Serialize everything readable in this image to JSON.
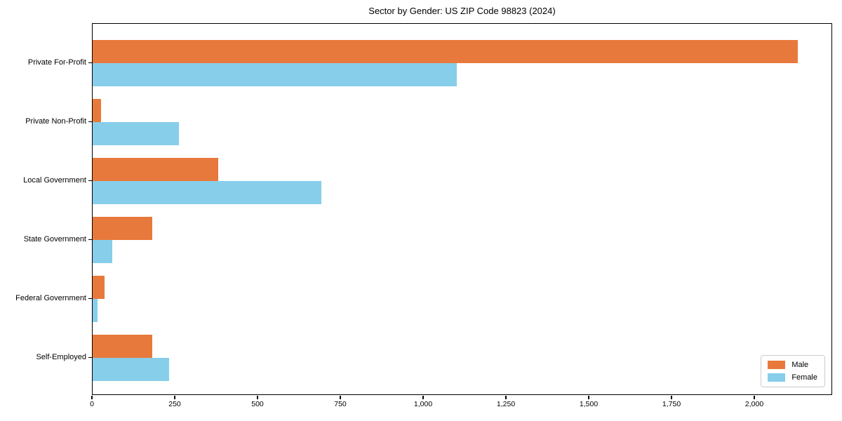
{
  "figure": {
    "background": "#ffffff",
    "text_color": "#000000",
    "spine_color": "#000000"
  },
  "chart_data": {
    "type": "bar",
    "orientation": "horizontal",
    "title": "Sector by Gender: US ZIP Code 98823 (2024)",
    "xlabel": "",
    "ylabel": "",
    "grid": false,
    "categories": [
      "Private For-Profit",
      "Private Non-Profit",
      "Local Government",
      "State Government",
      "Federal Government",
      "Self-Employed"
    ],
    "series": [
      {
        "name": "Male",
        "color": "#E8793C",
        "values": [
          2130,
          25,
          380,
          180,
          35,
          180
        ]
      },
      {
        "name": "Female",
        "color": "#87CEEB",
        "values": [
          1100,
          260,
          690,
          60,
          15,
          230
        ]
      }
    ],
    "xlim": [
      0,
      2235
    ],
    "xticks": [
      0,
      250,
      500,
      750,
      1000,
      1250,
      1500,
      1750,
      2000
    ],
    "xtick_labels": [
      "0",
      "250",
      "500",
      "750",
      "1,000",
      "1,250",
      "1,500",
      "1,750",
      "2,000"
    ],
    "legend": {
      "position": "lower right",
      "items": [
        "Male",
        "Female"
      ]
    }
  }
}
